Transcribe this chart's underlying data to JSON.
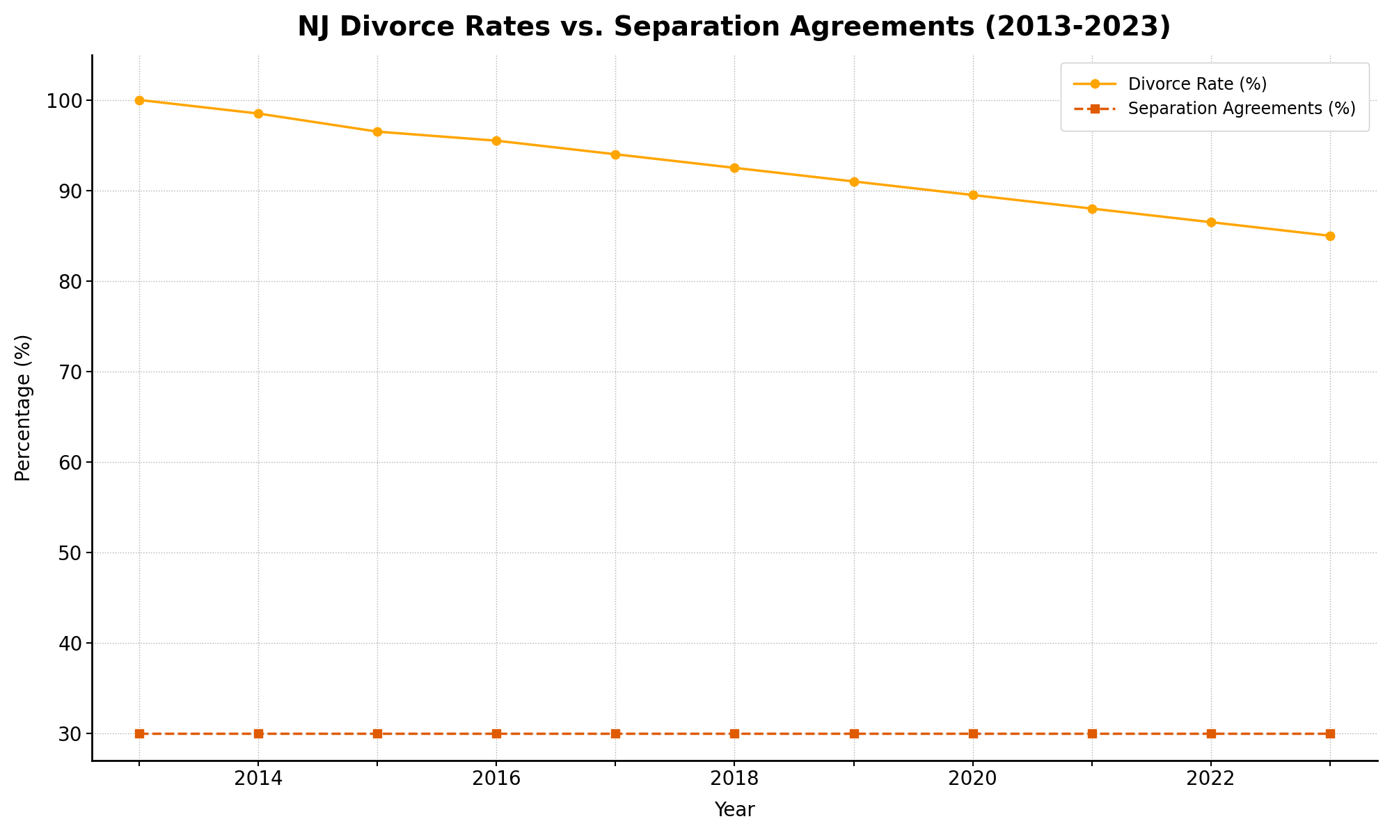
{
  "title": "NJ Divorce Rates vs. Separation Agreements (2013-2023)",
  "xlabel": "Year",
  "ylabel": "Percentage (%)",
  "years": [
    2013,
    2014,
    2015,
    2016,
    2017,
    2018,
    2019,
    2020,
    2021,
    2022,
    2023
  ],
  "divorce_rate": [
    100,
    98.5,
    96.5,
    95.5,
    94,
    92.5,
    91,
    89.5,
    88,
    86.5,
    85
  ],
  "separation_agreements": [
    30,
    30,
    30,
    30,
    30,
    30,
    30,
    30,
    30,
    30,
    30
  ],
  "divorce_color": "#FFA500",
  "separation_color": "#E05A00",
  "divorce_label": "Divorce Rate (%)",
  "separation_label": "Separation Agreements (%)",
  "ylim_bottom": 27,
  "ylim_top": 105,
  "xlim_left": 2012.6,
  "xlim_right": 2023.4,
  "background_color": "#ffffff",
  "grid_color": "#999999",
  "title_fontsize": 28,
  "axis_label_fontsize": 20,
  "tick_fontsize": 20,
  "legend_fontsize": 17,
  "xticks": [
    2013,
    2014,
    2015,
    2016,
    2017,
    2018,
    2019,
    2020,
    2021,
    2022,
    2023
  ],
  "xtick_labels": [
    "",
    "2014",
    "",
    "2016",
    "",
    "2018",
    "",
    "2020",
    "",
    "2022",
    ""
  ],
  "yticks": [
    30,
    40,
    50,
    60,
    70,
    80,
    90,
    100
  ],
  "ytick_labels": [
    "30",
    "40",
    "50",
    "60",
    "70",
    "80",
    "90",
    "100"
  ]
}
